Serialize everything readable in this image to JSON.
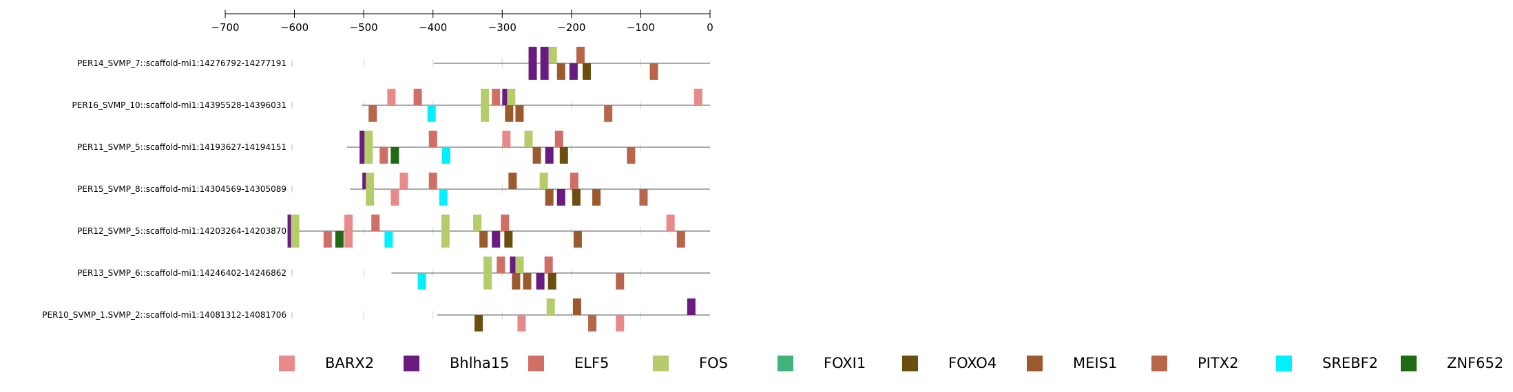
{
  "axis": {
    "ticks": [
      -700,
      -600,
      -500,
      -400,
      -300,
      -200,
      -100,
      0
    ],
    "range": [
      -700,
      0
    ]
  },
  "factors": [
    {
      "name": "BARX2",
      "color": "#e98a8a"
    },
    {
      "name": "Bhlha15",
      "color": "#6a1b80"
    },
    {
      "name": "ELF5",
      "color": "#cf6f65"
    },
    {
      "name": "FOS",
      "color": "#b5cc6a"
    },
    {
      "name": "FOXI1",
      "color": "#40b27a"
    },
    {
      "name": "FOXO4",
      "color": "#6b4f10"
    },
    {
      "name": "MEIS1",
      "color": "#9b5a2e"
    },
    {
      "name": "PITX2",
      "color": "#b7664a"
    },
    {
      "name": "SREBF2",
      "color": "#00f0ff"
    },
    {
      "name": "ZNF652",
      "color": "#1e6b14"
    }
  ],
  "sequences": [
    {
      "label": "PER14_SVMP_7::scaffold-mi1:14276792-14277191",
      "start": -399,
      "sites": [
        {
          "tf": "Bhlha15",
          "pos": -256,
          "strand": "both"
        },
        {
          "tf": "Bhlha15",
          "pos": -239,
          "strand": "both"
        },
        {
          "tf": "FOS",
          "pos": -227,
          "strand": "top"
        },
        {
          "tf": "PITX2",
          "pos": -187,
          "strand": "top"
        },
        {
          "tf": "MEIS1",
          "pos": -215,
          "strand": "bottom"
        },
        {
          "tf": "Bhlha15",
          "pos": -197,
          "strand": "bottom"
        },
        {
          "tf": "FOXO4",
          "pos": -178,
          "strand": "bottom"
        },
        {
          "tf": "PITX2",
          "pos": -81,
          "strand": "bottom"
        }
      ]
    },
    {
      "label": "PER16_SVMP_10::scaffold-mi1:14395528-14396031",
      "start": -503,
      "sites": [
        {
          "tf": "BARX2",
          "pos": -460,
          "strand": "top"
        },
        {
          "tf": "ELF5",
          "pos": -422,
          "strand": "top"
        },
        {
          "tf": "FOS",
          "pos": -325,
          "strand": "both"
        },
        {
          "tf": "ELF5",
          "pos": -309,
          "strand": "top"
        },
        {
          "tf": "Bhlha15",
          "pos": -294,
          "strand": "top"
        },
        {
          "tf": "FOS",
          "pos": -287,
          "strand": "top"
        },
        {
          "tf": "BARX2",
          "pos": -17,
          "strand": "top"
        },
        {
          "tf": "PITX2",
          "pos": -487,
          "strand": "bottom"
        },
        {
          "tf": "SREBF2",
          "pos": -402,
          "strand": "bottom"
        },
        {
          "tf": "MEIS1",
          "pos": -290,
          "strand": "bottom"
        },
        {
          "tf": "MEIS1",
          "pos": -275,
          "strand": "bottom"
        },
        {
          "tf": "PITX2",
          "pos": -147,
          "strand": "bottom"
        }
      ]
    },
    {
      "label": "PER11_SVMP_5::scaffold-mi1:14193627-14194151",
      "start": -524,
      "sites": [
        {
          "tf": "Bhlha15",
          "pos": -500,
          "strand": "both"
        },
        {
          "tf": "FOS",
          "pos": -493,
          "strand": "both"
        },
        {
          "tf": "ELF5",
          "pos": -400,
          "strand": "top"
        },
        {
          "tf": "BARX2",
          "pos": -294,
          "strand": "top"
        },
        {
          "tf": "FOS",
          "pos": -262,
          "strand": "top"
        },
        {
          "tf": "ELF5",
          "pos": -218,
          "strand": "top"
        },
        {
          "tf": "ELF5",
          "pos": -471,
          "strand": "bottom"
        },
        {
          "tf": "ZNF652",
          "pos": -455,
          "strand": "bottom"
        },
        {
          "tf": "SREBF2",
          "pos": -381,
          "strand": "bottom"
        },
        {
          "tf": "MEIS1",
          "pos": -250,
          "strand": "bottom"
        },
        {
          "tf": "Bhlha15",
          "pos": -232,
          "strand": "bottom"
        },
        {
          "tf": "FOXO4",
          "pos": -211,
          "strand": "bottom"
        },
        {
          "tf": "PITX2",
          "pos": -114,
          "strand": "bottom"
        }
      ]
    },
    {
      "label": "PER15_SVMP_8::scaffold-mi1:14304569-14305089",
      "start": -520,
      "sites": [
        {
          "tf": "Bhlha15",
          "pos": -496,
          "strand": "top"
        },
        {
          "tf": "FOS",
          "pos": -491,
          "strand": "both"
        },
        {
          "tf": "BARX2",
          "pos": -442,
          "strand": "top"
        },
        {
          "tf": "ELF5",
          "pos": -400,
          "strand": "top"
        },
        {
          "tf": "MEIS1",
          "pos": -285,
          "strand": "top"
        },
        {
          "tf": "FOS",
          "pos": -240,
          "strand": "top"
        },
        {
          "tf": "ELF5",
          "pos": -196,
          "strand": "top"
        },
        {
          "tf": "BARX2",
          "pos": -455,
          "strand": "bottom"
        },
        {
          "tf": "SREBF2",
          "pos": -385,
          "strand": "bottom"
        },
        {
          "tf": "MEIS1",
          "pos": -232,
          "strand": "bottom"
        },
        {
          "tf": "Bhlha15",
          "pos": -215,
          "strand": "bottom"
        },
        {
          "tf": "FOXO4",
          "pos": -193,
          "strand": "bottom"
        },
        {
          "tf": "MEIS1",
          "pos": -164,
          "strand": "bottom"
        },
        {
          "tf": "PITX2",
          "pos": -96,
          "strand": "bottom"
        }
      ]
    },
    {
      "label": "PER12_SVMP_5::scaffold-mi1:14203264-14203870",
      "start": -606,
      "sites": [
        {
          "tf": "Bhlha15",
          "pos": -604,
          "strand": "both"
        },
        {
          "tf": "FOS",
          "pos": -599,
          "strand": "both"
        },
        {
          "tf": "BARX2",
          "pos": -522,
          "strand": "both"
        },
        {
          "tf": "ELF5",
          "pos": -483,
          "strand": "top"
        },
        {
          "tf": "FOS",
          "pos": -382,
          "strand": "both"
        },
        {
          "tf": "FOS",
          "pos": -336,
          "strand": "top"
        },
        {
          "tf": "ELF5",
          "pos": -296,
          "strand": "top"
        },
        {
          "tf": "BARX2",
          "pos": -57,
          "strand": "top"
        },
        {
          "tf": "ELF5",
          "pos": -552,
          "strand": "bottom"
        },
        {
          "tf": "ZNF652",
          "pos": -535,
          "strand": "bottom"
        },
        {
          "tf": "SREBF2",
          "pos": -464,
          "strand": "bottom"
        },
        {
          "tf": "MEIS1",
          "pos": -327,
          "strand": "bottom"
        },
        {
          "tf": "Bhlha15",
          "pos": -309,
          "strand": "bottom"
        },
        {
          "tf": "FOXO4",
          "pos": -291,
          "strand": "bottom"
        },
        {
          "tf": "MEIS1",
          "pos": -191,
          "strand": "bottom"
        },
        {
          "tf": "PITX2",
          "pos": -42,
          "strand": "bottom"
        }
      ]
    },
    {
      "label": "PER13_SVMP_6::scaffold-mi1:14246402-14246862",
      "start": -460,
      "sites": [
        {
          "tf": "FOS",
          "pos": -321,
          "strand": "both"
        },
        {
          "tf": "ELF5",
          "pos": -302,
          "strand": "top"
        },
        {
          "tf": "Bhlha15",
          "pos": -283,
          "strand": "top"
        },
        {
          "tf": "FOS",
          "pos": -275,
          "strand": "top"
        },
        {
          "tf": "ELF5",
          "pos": -233,
          "strand": "top"
        },
        {
          "tf": "SREBF2",
          "pos": -416,
          "strand": "bottom"
        },
        {
          "tf": "MEIS1",
          "pos": -280,
          "strand": "bottom"
        },
        {
          "tf": "MEIS1",
          "pos": -264,
          "strand": "bottom"
        },
        {
          "tf": "Bhlha15",
          "pos": -245,
          "strand": "bottom"
        },
        {
          "tf": "FOXO4",
          "pos": -228,
          "strand": "bottom"
        },
        {
          "tf": "PITX2",
          "pos": -130,
          "strand": "bottom"
        }
      ]
    },
    {
      "label": "PER10_SVMP_1.SVMP_2::scaffold-mi1:14081312-14081706",
      "start": -394,
      "sites": [
        {
          "tf": "FOS",
          "pos": -230,
          "strand": "top"
        },
        {
          "tf": "MEIS1",
          "pos": -192,
          "strand": "top"
        },
        {
          "tf": "Bhlha15",
          "pos": -27,
          "strand": "top"
        },
        {
          "tf": "FOXO4",
          "pos": -334,
          "strand": "bottom"
        },
        {
          "tf": "BARX2",
          "pos": -272,
          "strand": "bottom"
        },
        {
          "tf": "PITX2",
          "pos": -170,
          "strand": "bottom"
        },
        {
          "tf": "BARX2",
          "pos": -130,
          "strand": "bottom"
        }
      ]
    }
  ]
}
